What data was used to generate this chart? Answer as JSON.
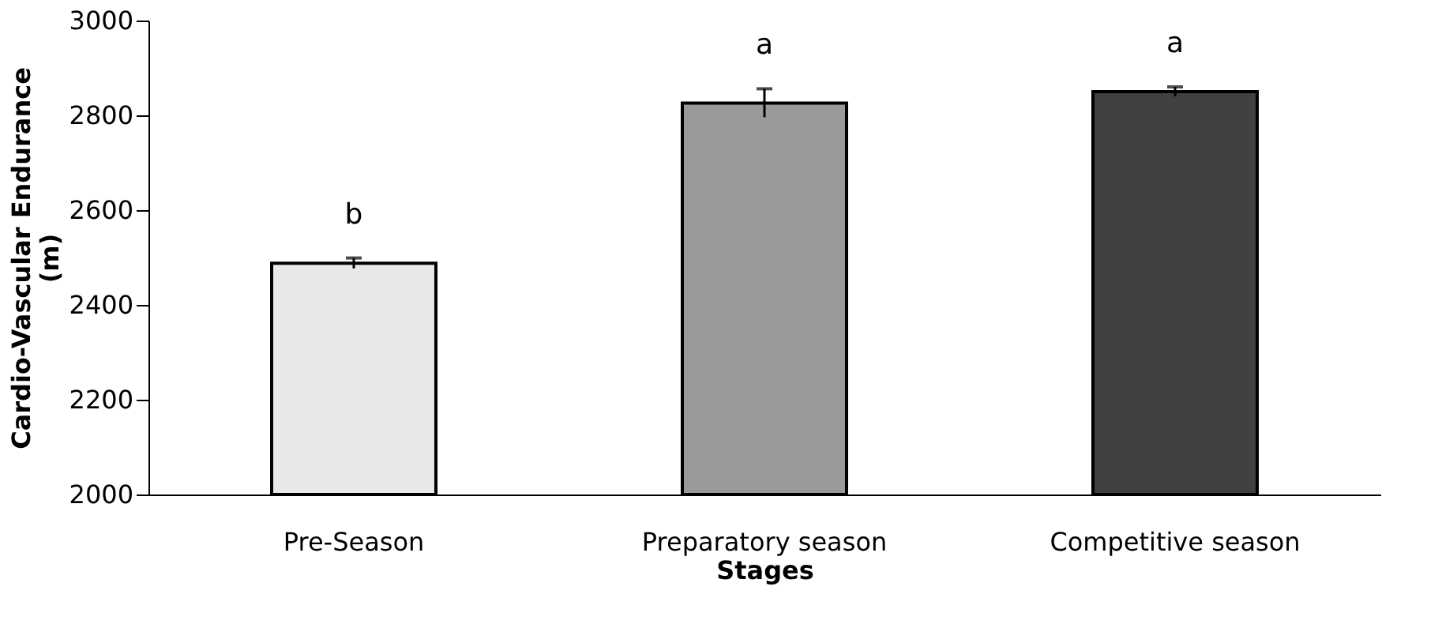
{
  "chart_data": {
    "type": "bar",
    "xlabel": "Stages",
    "ylabel": "Cardio-Vascular Endurance (m)",
    "categories": [
      "Pre-Season",
      "Preparatory season",
      "Competitive season"
    ],
    "values": [
      2488,
      2826,
      2850
    ],
    "errors": [
      11,
      30,
      10
    ],
    "colors": [
      "#e8e8e8",
      "#9a9a9a",
      "#404040"
    ],
    "ylim": [
      2000,
      3000
    ],
    "yticks": [
      2000,
      2200,
      2400,
      2600,
      2800,
      3000
    ],
    "grid": false,
    "annotations": [
      "b",
      "a",
      "a"
    ]
  }
}
